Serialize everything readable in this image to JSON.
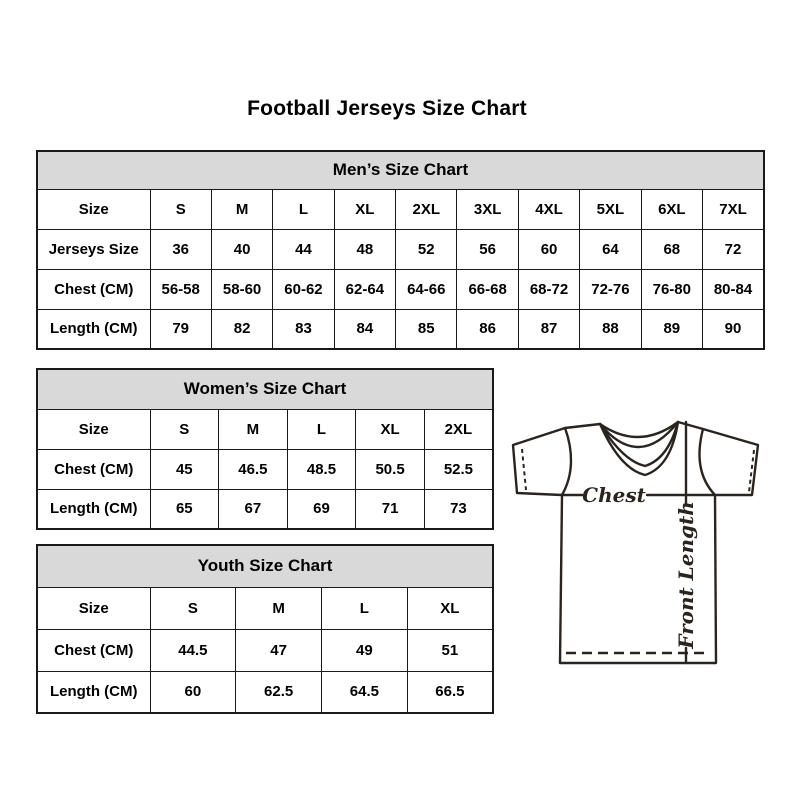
{
  "page": {
    "title": "Football Jerseys Size Chart"
  },
  "tables": {
    "men": {
      "title": "Men’s Size Chart",
      "rows": [
        [
          "Size",
          "S",
          "M",
          "L",
          "XL",
          "2XL",
          "3XL",
          "4XL",
          "5XL",
          "6XL",
          "7XL"
        ],
        [
          "Jerseys Size",
          "36",
          "40",
          "44",
          "48",
          "52",
          "56",
          "60",
          "64",
          "68",
          "72"
        ],
        [
          "Chest (CM)",
          "56-58",
          "58-60",
          "60-62",
          "62-64",
          "64-66",
          "66-68",
          "68-72",
          "72-76",
          "76-80",
          "80-84"
        ],
        [
          "Length (CM)",
          "79",
          "82",
          "83",
          "84",
          "85",
          "86",
          "87",
          "88",
          "89",
          "90"
        ]
      ]
    },
    "women": {
      "title": "Women’s Size Chart",
      "rows": [
        [
          "Size",
          "S",
          "M",
          "L",
          "XL",
          "2XL"
        ],
        [
          "Chest (CM)",
          "45",
          "46.5",
          "48.5",
          "50.5",
          "52.5"
        ],
        [
          "Length (CM)",
          "65",
          "67",
          "69",
          "71",
          "73"
        ]
      ]
    },
    "youth": {
      "title": "Youth Size Chart",
      "rows": [
        [
          "Size",
          "S",
          "M",
          "L",
          "XL"
        ],
        [
          "Chest (CM)",
          "44.5",
          "47",
          "49",
          "51"
        ],
        [
          "Length (CM)",
          "60",
          "62.5",
          "64.5",
          "66.5"
        ]
      ]
    }
  },
  "diagram": {
    "chest_label": "Chest",
    "front_length_label": "Front Length"
  },
  "colors": {
    "header_bg": "#d9d9d9",
    "table_border": "#1a1a1a",
    "jersey_line": "#2a241f",
    "page_bg": "#ffffff",
    "text": "#000000"
  }
}
